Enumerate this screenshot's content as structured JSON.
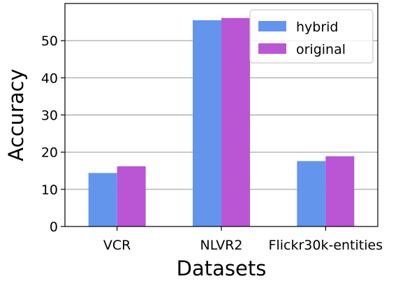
{
  "chart_data": {
    "type": "bar",
    "title": "",
    "xlabel": "Datasets",
    "ylabel": "Accuracy",
    "categories": [
      "VCR",
      "NLVR2",
      "Flickr30k-entities"
    ],
    "series": [
      {
        "name": "hybrid",
        "color": "#6495ED",
        "values": [
          14.4,
          55.5,
          17.6
        ]
      },
      {
        "name": "original",
        "color": "#BA55D3",
        "values": [
          16.2,
          56.1,
          18.9
        ]
      }
    ],
    "ylim": [
      0,
      60
    ],
    "yticks": [
      0,
      10,
      20,
      30,
      40,
      50
    ],
    "grid": "y",
    "legend": "top-right"
  }
}
